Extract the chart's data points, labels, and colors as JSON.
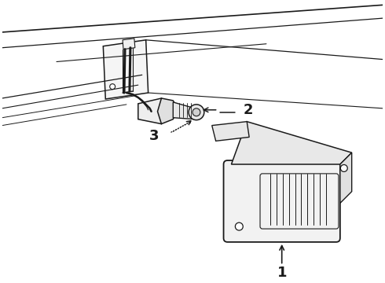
{
  "bg_color": "#ffffff",
  "line_color": "#1a1a1a",
  "label_1": "1",
  "label_2": "2",
  "label_3": "3",
  "label_fontsize": 13,
  "figsize": [
    4.9,
    3.6
  ],
  "dpi": 100,
  "body_lines": [
    [
      0,
      55,
      490,
      10
    ],
    [
      0,
      75,
      490,
      28
    ],
    [
      0,
      95,
      310,
      58
    ],
    [
      0,
      115,
      180,
      88
    ],
    [
      0,
      130,
      160,
      105
    ],
    [
      0,
      142,
      150,
      118
    ],
    [
      0,
      153,
      145,
      130
    ]
  ],
  "upper_lines": [
    [
      210,
      5,
      490,
      38
    ],
    [
      250,
      0,
      490,
      50
    ]
  ]
}
